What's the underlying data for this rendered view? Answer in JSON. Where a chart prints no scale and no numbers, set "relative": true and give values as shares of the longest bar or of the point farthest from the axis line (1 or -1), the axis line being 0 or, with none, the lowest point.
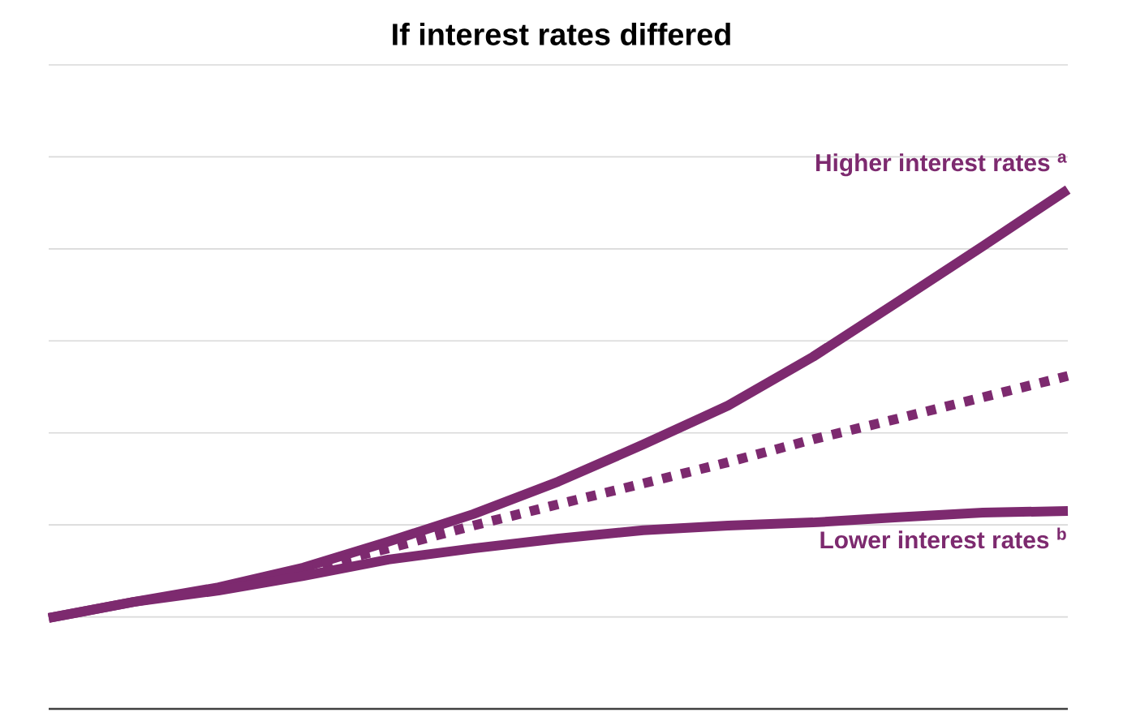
{
  "chart_data": {
    "type": "line",
    "title": "If interest rates differed",
    "relative": true,
    "grid": "y",
    "categories": [
      null,
      null,
      null,
      null,
      null,
      null,
      null,
      null,
      null,
      null,
      null,
      null,
      null
    ],
    "series": [
      {
        "name": "Higher interest rates $^{a}$",
        "color": "#7d2a6f",
        "line_style": "solid",
        "values": [
          0.175,
          0.206,
          0.234,
          0.272,
          0.322,
          0.375,
          0.4375,
          0.509,
          0.584,
          0.678,
          0.784,
          0.891,
          1
        ]
      },
      {
        "color": "#7d2a6f",
        "line_style": "dotted",
        "values": [
          null,
          null,
          null,
          0.269,
          0.309,
          0.353,
          0.394,
          0.434,
          0.475,
          0.519,
          0.559,
          0.6,
          0.641
        ]
      },
      {
        "name": "Lower interest rates $^{b}$",
        "color": "#7d2a6f",
        "line_style": "solid",
        "values": [
          0.175,
          0.206,
          0.228,
          0.256,
          0.2875,
          0.309,
          0.328,
          0.344,
          0.353,
          0.359,
          0.369,
          0.378,
          0.381
        ]
      }
    ]
  }
}
